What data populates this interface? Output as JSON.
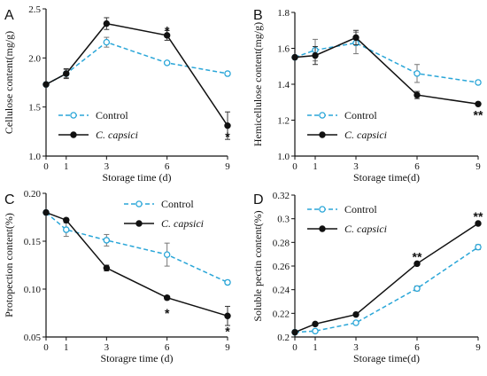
{
  "chart_data": [
    {
      "panel": "A",
      "type": "line",
      "ylabel": "Cellulose content(mg/g)",
      "xlabel": "Storage time (d)",
      "x": [
        0,
        1,
        3,
        6,
        9
      ],
      "x_ticks": [
        "0",
        "1",
        "3",
        "6",
        "9"
      ],
      "ylim": [
        1.0,
        2.5
      ],
      "y_ticks": [
        "1.0",
        "1.5",
        "2.0",
        "2.5"
      ],
      "legend_position": "bottom-left",
      "series": [
        {
          "name": "Control",
          "color": "#2aa6d8",
          "values": [
            1.73,
            1.84,
            2.16,
            1.95,
            1.84
          ],
          "err": [
            0,
            0.04,
            0.05,
            0.01,
            0.01
          ]
        },
        {
          "name": "C. capsici",
          "color": "#111111",
          "values": [
            1.73,
            1.84,
            2.35,
            2.23,
            1.31
          ],
          "err": [
            0,
            0.05,
            0.06,
            0.05,
            0.14
          ]
        }
      ],
      "annotations": [
        {
          "text": "*",
          "x": 6,
          "y": 2.28
        },
        {
          "text": "*",
          "x": 9,
          "y": 1.2
        }
      ]
    },
    {
      "panel": "B",
      "type": "line",
      "ylabel": "Hemicellulose content(mg/g)",
      "xlabel": "Storage time(d)",
      "x": [
        0,
        1,
        3,
        6,
        9
      ],
      "x_ticks": [
        "0",
        "1",
        "3",
        "6",
        "9"
      ],
      "ylim": [
        1.0,
        1.8
      ],
      "y_ticks": [
        "1.0",
        "1.2",
        "1.4",
        "1.6",
        "1.8"
      ],
      "legend_position": "bottom-left",
      "series": [
        {
          "name": "Control",
          "color": "#2aa6d8",
          "values": [
            1.55,
            1.59,
            1.63,
            1.46,
            1.41
          ],
          "err": [
            0,
            0.06,
            0.06,
            0.05,
            0.01
          ]
        },
        {
          "name": "C. capsici",
          "color": "#111111",
          "values": [
            1.55,
            1.56,
            1.66,
            1.34,
            1.29
          ],
          "err": [
            0,
            0.05,
            0.04,
            0.02,
            0.005
          ]
        }
      ],
      "annotations": [
        {
          "text": "**",
          "x": 9,
          "y": 1.23
        }
      ]
    },
    {
      "panel": "C",
      "type": "line",
      "ylabel": "Protopection content(%)",
      "xlabel": "Storagre time (d)",
      "x": [
        0,
        1,
        3,
        6,
        9
      ],
      "x_ticks": [
        "0",
        "1",
        "3",
        "6",
        "9"
      ],
      "ylim": [
        0.05,
        0.2
      ],
      "y_ticks": [
        "0.05",
        "0.10",
        "0.15",
        "0.20"
      ],
      "legend_position": "top-right",
      "series": [
        {
          "name": "Control",
          "color": "#2aa6d8",
          "values": [
            0.18,
            0.162,
            0.151,
            0.136,
            0.107
          ],
          "err": [
            0,
            0.007,
            0.006,
            0.012,
            0.002
          ]
        },
        {
          "name": "C. capsici",
          "color": "#111111",
          "values": [
            0.18,
            0.172,
            0.122,
            0.091,
            0.072
          ],
          "err": [
            0,
            0.002,
            0.003,
            0.002,
            0.01
          ]
        }
      ],
      "annotations": [
        {
          "text": "*",
          "x": 6,
          "y": 0.075
        },
        {
          "text": "*",
          "x": 9,
          "y": 0.056
        }
      ]
    },
    {
      "panel": "D",
      "type": "line",
      "ylabel": "Soluble pectin content(%)",
      "xlabel": "Storage time(d)",
      "x": [
        0,
        1,
        3,
        6,
        9
      ],
      "x_ticks": [
        "0",
        "1",
        "3",
        "6",
        "9"
      ],
      "ylim": [
        0.2,
        0.32
      ],
      "y_ticks": [
        "0.2",
        "0.22",
        "0.24",
        "0.26",
        "0.28",
        "0.3",
        "0.32"
      ],
      "legend_position": "top-left",
      "series": [
        {
          "name": "Control",
          "color": "#2aa6d8",
          "values": [
            0.204,
            0.205,
            0.212,
            0.241,
            0.276
          ],
          "err": [
            0,
            0.001,
            0.001,
            0.002,
            0.002
          ]
        },
        {
          "name": "C. capsici",
          "color": "#111111",
          "values": [
            0.204,
            0.211,
            0.219,
            0.262,
            0.296
          ],
          "err": [
            0,
            0.001,
            0.001,
            0.001,
            0.001
          ]
        }
      ],
      "annotations": [
        {
          "text": "**",
          "x": 6,
          "y": 0.268
        },
        {
          "text": "**",
          "x": 9,
          "y": 0.302
        }
      ]
    }
  ]
}
